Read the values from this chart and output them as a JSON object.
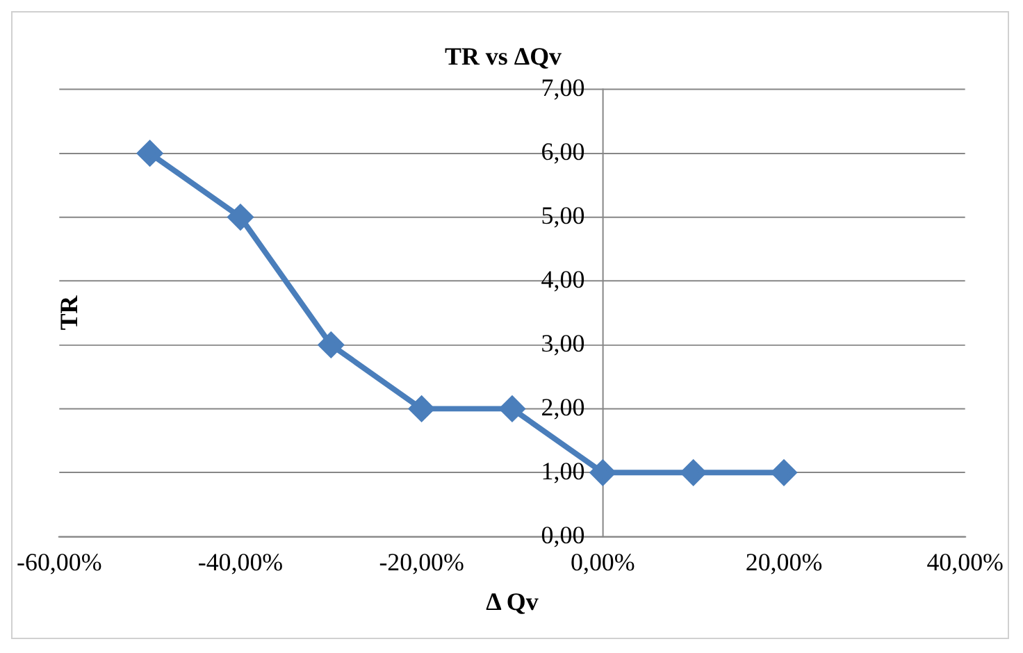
{
  "chart_data": {
    "type": "line",
    "title": "TR vs ΔQv",
    "xlabel": "Δ Qv",
    "ylabel": "TR",
    "x": [
      -50,
      -40,
      -30,
      -20,
      -10,
      0,
      10,
      20
    ],
    "series": [
      {
        "color": "#4a7ebb",
        "values": [
          6,
          5,
          3,
          2,
          2,
          1,
          1,
          1
        ]
      }
    ],
    "xlim": [
      -60,
      40
    ],
    "xticks": [
      {
        "value": -60,
        "label": "-60,00%"
      },
      {
        "value": -40,
        "label": "-40,00%"
      },
      {
        "value": -20,
        "label": "-20,00%"
      },
      {
        "value": 0,
        "label": "0,00%"
      },
      {
        "value": 20,
        "label": "20,00%"
      },
      {
        "value": 40,
        "label": "40,00%"
      }
    ],
    "ylim": [
      0,
      7
    ],
    "yticks": [
      {
        "value": 0,
        "label": "0,00"
      },
      {
        "value": 1,
        "label": "1,00"
      },
      {
        "value": 2,
        "label": "2,00"
      },
      {
        "value": 3,
        "label": "3,00"
      },
      {
        "value": 4,
        "label": "4,00"
      },
      {
        "value": 5,
        "label": "5,00"
      },
      {
        "value": 6,
        "label": "6,00"
      },
      {
        "value": 7,
        "label": "7,00"
      }
    ],
    "grid": "y",
    "marker": "diamond",
    "line_style": "solid"
  }
}
